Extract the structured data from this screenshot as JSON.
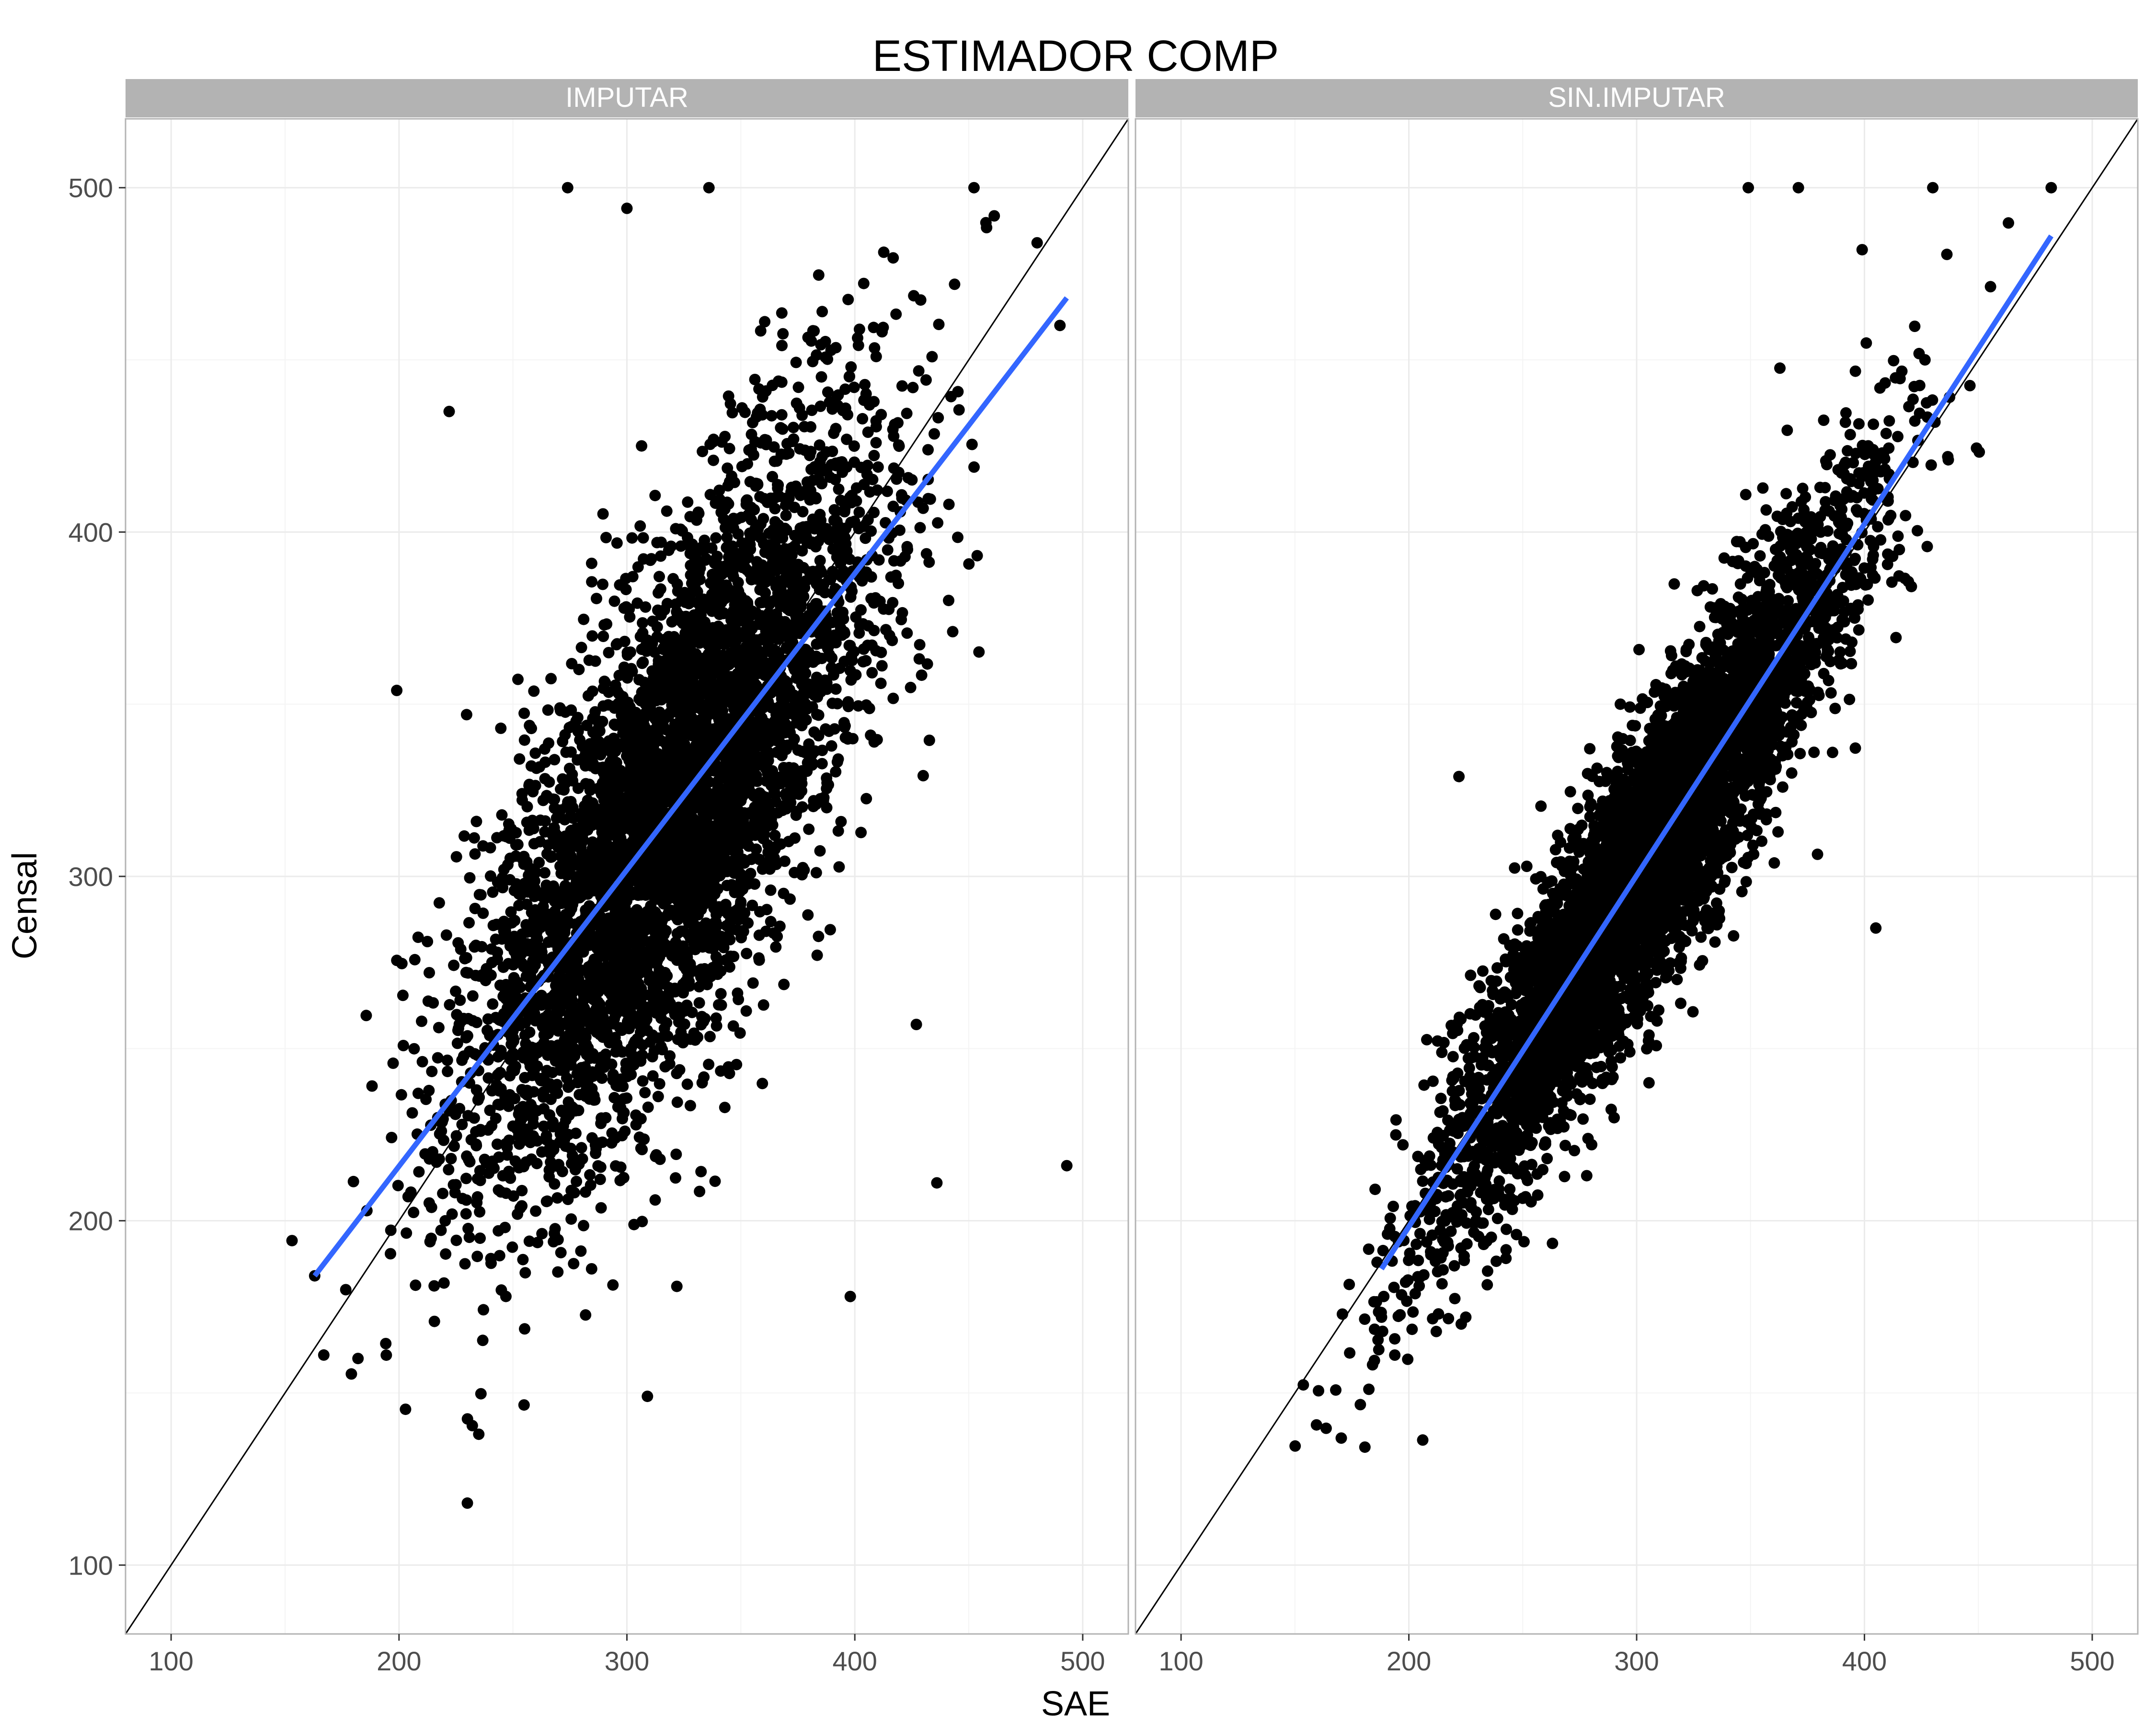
{
  "chart_data": {
    "type": "scatter",
    "title": "ESTIMADOR COMP",
    "xlabel": "SAE",
    "ylabel": "Censal",
    "xlim": [
      80,
      520
    ],
    "ylim": [
      80,
      520
    ],
    "x_ticks": [
      100,
      200,
      300,
      400,
      500
    ],
    "y_ticks": [
      100,
      200,
      300,
      400,
      500
    ],
    "grid": true,
    "reference_line": "y = x",
    "colors": {
      "points": "#000000",
      "fit_line": "#3366FF",
      "reference_line": "#000000",
      "strip": "#b3b3b3"
    },
    "panels": [
      {
        "strip": "IMPUTAR",
        "fit_line": {
          "x": [
            163,
            493
          ],
          "y": [
            184,
            468
          ]
        },
        "points": {
          "description": "approx. 5000 estimates (visual estimate)",
          "n": 5000,
          "x_center": 320,
          "x_sd": 45,
          "fit_slope": 0.86,
          "fit_intercept": 44,
          "residual_sd": 36,
          "y_cap": 500,
          "extra": [
            [
              163,
              184
            ],
            [
              167,
              161
            ],
            [
              182,
              160
            ],
            [
              230,
              118
            ],
            [
              235,
              138
            ],
            [
              309,
              149
            ],
            [
              493,
              216
            ],
            [
              222,
              435
            ],
            [
              199,
              354
            ],
            [
              436,
              211
            ],
            [
              427,
              257
            ],
            [
              398,
              178
            ],
            [
              274,
              500
            ],
            [
              300,
              494
            ],
            [
              336,
              500
            ],
            [
              480,
              484
            ],
            [
              490,
              460
            ]
          ]
        }
      },
      {
        "strip": "SIN.IMPUTAR",
        "fit_line": {
          "x": [
            188,
            482
          ],
          "y": [
            186,
            486
          ]
        },
        "points": {
          "description": "approx. 5000 estimates (visual estimate)",
          "n": 5000,
          "x_center": 305,
          "x_sd": 45,
          "fit_slope": 1.02,
          "fit_intercept": -6,
          "residual_sd": 20,
          "y_cap": 500,
          "extra": [
            [
              188,
              172
            ],
            [
              189,
              178
            ],
            [
              223,
              170
            ],
            [
              225,
              172
            ],
            [
              222,
              329
            ],
            [
              405,
              285
            ],
            [
              349,
              500
            ],
            [
              371,
              500
            ],
            [
              430,
              500
            ],
            [
              482,
              500
            ],
            [
              399,
              482
            ],
            [
              386,
              336
            ]
          ]
        }
      }
    ]
  }
}
